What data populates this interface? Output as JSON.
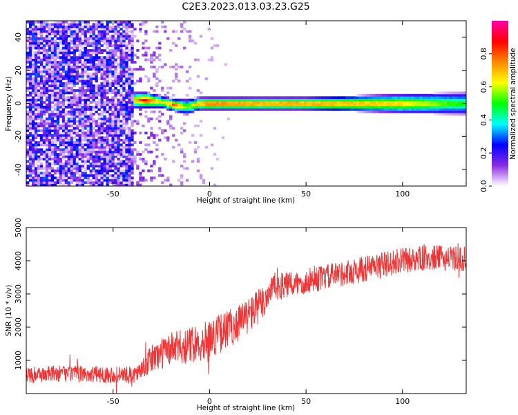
{
  "figure": {
    "title": "C2E3.2023.013.03.23.G25"
  },
  "chart_data": [
    {
      "type": "heatmap",
      "xlabel": "Height of straight line (km)",
      "ylabel": "Frequency (Hz)",
      "xlim": [
        -95,
        133
      ],
      "ylim": [
        -50,
        50
      ],
      "xticks": [
        -50,
        0,
        50,
        100
      ],
      "yticks": [
        -40,
        -20,
        0,
        20,
        40
      ],
      "colorbar": {
        "label": "Normalized spectral amplitude",
        "range": [
          0.0,
          1.0
        ],
        "ticks": [
          0.0,
          0.2,
          0.4,
          0.6,
          0.8
        ],
        "colormap": [
          "#ffffff",
          "#8a2be2",
          "#0000ff",
          "#00ffff",
          "#00ff00",
          "#ffff00",
          "#ff8800",
          "#ff0000",
          "#ff00aa"
        ]
      },
      "noise_region_x": [
        -95,
        -40
      ],
      "ridge": {
        "x": [
          -40,
          -33,
          -25,
          -18,
          -12,
          -5,
          0,
          25,
          50,
          75,
          100,
          133
        ],
        "frequency": [
          2,
          2,
          1,
          -1,
          -2,
          0,
          0,
          0,
          0,
          0,
          0,
          0
        ],
        "amplitude": [
          0.7,
          0.95,
          0.7,
          0.85,
          0.6,
          0.8,
          0.9,
          0.85,
          0.85,
          0.8,
          0.75,
          0.55
        ],
        "width_hz": [
          5,
          5,
          4,
          4,
          5,
          4,
          4,
          4,
          4,
          5,
          6,
          7
        ]
      }
    },
    {
      "type": "line",
      "xlabel": "Height of straight line (km)",
      "ylabel": "SNR (10 * v/v)",
      "xlim": [
        -95,
        133
      ],
      "ylim": [
        0,
        5000
      ],
      "xticks": [
        -50,
        0,
        50,
        100
      ],
      "yticks": [
        1000,
        2000,
        3000,
        4000,
        5000
      ],
      "series": [
        {
          "color": "#ef3535",
          "x": [
            -95,
            -80,
            -60,
            -40,
            -35,
            -30,
            -20,
            -10,
            0,
            10,
            20,
            28,
            32,
            40,
            60,
            80,
            100,
            115,
            133
          ],
          "mean": [
            550,
            600,
            580,
            560,
            700,
            1050,
            1350,
            1450,
            1650,
            1950,
            2350,
            2750,
            3200,
            3250,
            3500,
            3750,
            4000,
            4100,
            4050
          ],
          "spread": [
            250,
            250,
            250,
            250,
            300,
            450,
            500,
            550,
            600,
            600,
            550,
            550,
            450,
            400,
            380,
            400,
            400,
            380,
            380
          ]
        }
      ]
    }
  ]
}
